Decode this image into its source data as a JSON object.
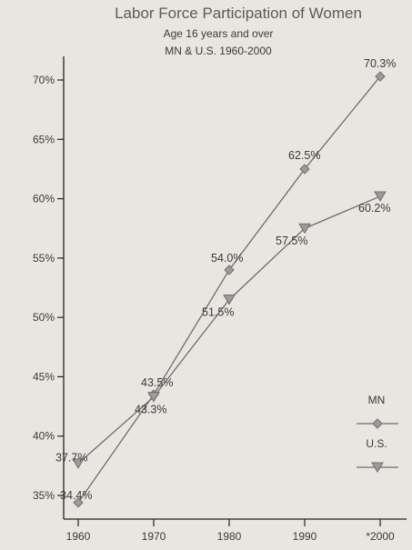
{
  "chart_data": {
    "type": "line",
    "title": "Labor Force Participation of Women",
    "subtitle_line1": "Age 16 years and over",
    "subtitle_line2": "MN & U.S. 1960-2000",
    "categories": [
      "1960",
      "1970",
      "1980",
      "1990",
      "*2000"
    ],
    "x": [
      1960,
      1970,
      1980,
      1990,
      2000
    ],
    "ylim": [
      35,
      70
    ],
    "y_ticks": [
      35,
      40,
      45,
      50,
      55,
      60,
      65,
      70
    ],
    "y_tick_labels": [
      "35%",
      "40%",
      "45%",
      "50%",
      "55%",
      "60%",
      "65%",
      "70%"
    ],
    "grid": false,
    "legend_position": "right",
    "series": [
      {
        "name": "MN",
        "marker": "diamond",
        "values": [
          34.4,
          43.5,
          54.0,
          62.5,
          70.3
        ],
        "labels": [
          "34.4%",
          "43.5%",
          "54.0%",
          "62.5%",
          "70.3%"
        ]
      },
      {
        "name": "U.S.",
        "marker": "triangle-down",
        "values": [
          37.7,
          43.3,
          51.5,
          57.5,
          60.2
        ],
        "labels": [
          "37.7%",
          "43.3%",
          "51.5%",
          "57.5%",
          "60.2%"
        ]
      }
    ],
    "colors": {
      "line": "#6e6e6e",
      "marker_fill": "#9b9b9b",
      "text": "#3a3a3a",
      "title": "#5b5b5b"
    }
  }
}
